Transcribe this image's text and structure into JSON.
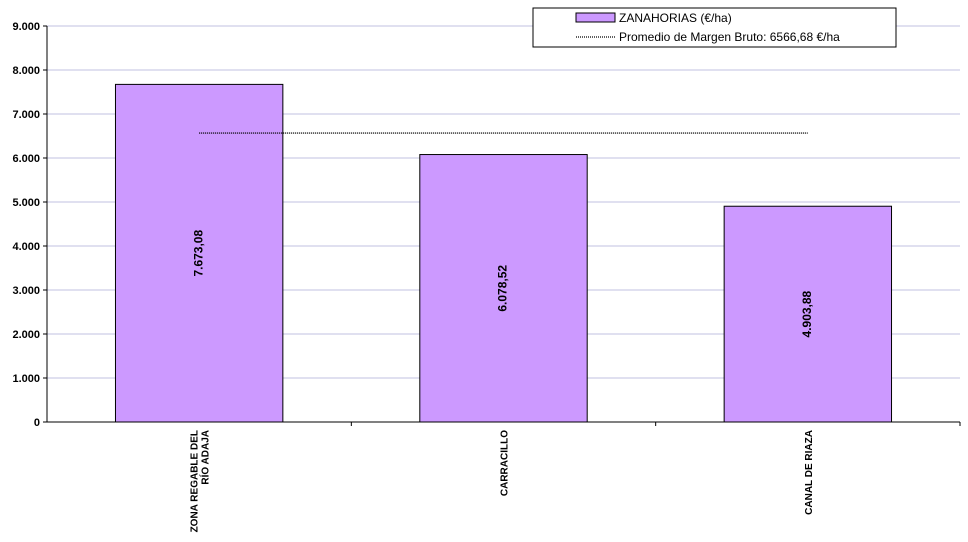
{
  "chart_data": {
    "type": "bar",
    "categories": [
      [
        "ZONA REGABLE DEL",
        "RÍO ADAJA"
      ],
      [
        "CARRACILLO"
      ],
      [
        "CANAL DE RIAZA"
      ]
    ],
    "series": [
      {
        "name": "ZANAHORIAS (€/ha)",
        "values": [
          7673.08,
          6078.52,
          4903.88
        ],
        "data_labels": [
          "7.673,08",
          "6.078,52",
          "4.903,88"
        ],
        "color": "#cc99ff"
      }
    ],
    "reference_line": {
      "name": "Promedio de Margen Bruto: 6566,68 €/ha",
      "value": 6566.68
    },
    "ylim": [
      0,
      9000
    ],
    "yticks": [
      0,
      1000,
      2000,
      3000,
      4000,
      5000,
      6000,
      7000,
      8000,
      9000
    ],
    "ytick_labels": [
      "0",
      "1.000",
      "2.000",
      "3.000",
      "4.000",
      "5.000",
      "6.000",
      "7.000",
      "8.000",
      "9.000"
    ],
    "grid": true,
    "legend_position": "top-right",
    "gridline_color": "#c0c0e0",
    "bar_border_color": "#000000"
  }
}
